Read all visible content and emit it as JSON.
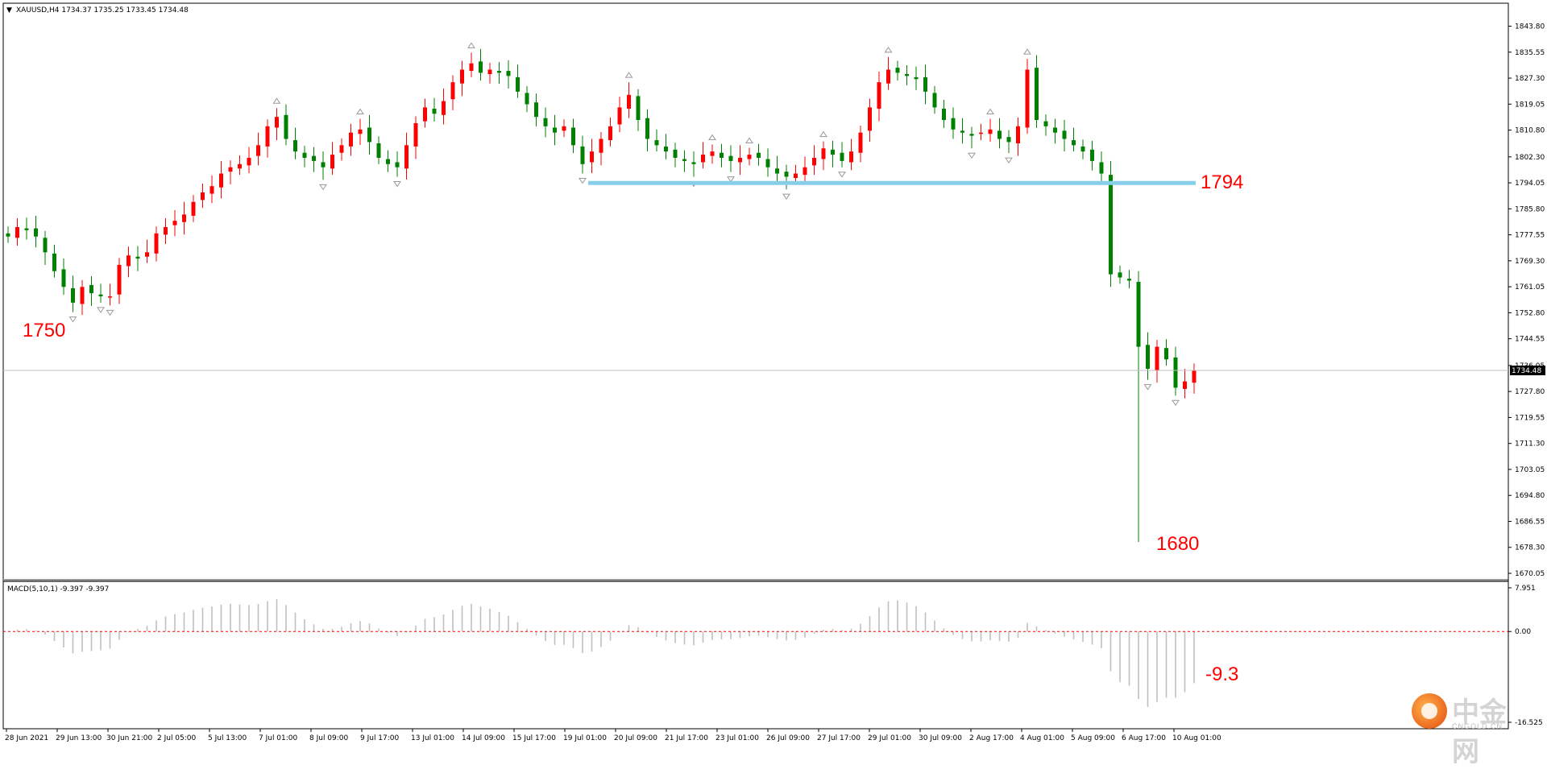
{
  "window": {
    "symbol_line": "XAUUSD,H4  1734.37 1735.25 1733.45 1734.48",
    "menu_icon": "triangle-down-icon"
  },
  "colors": {
    "bull": "#ff0000",
    "bear": "#008000",
    "support_line": "#87ceeb",
    "annotation": "#ff0000",
    "macd_bars": "#c0c0c0",
    "zero_line": "#ff0000",
    "grid": "none"
  },
  "annotations": {
    "low_left": "1750",
    "support": "1794",
    "low_right": "1680",
    "macd_value": "-9.3"
  },
  "watermark": {
    "logo_text": "中金网",
    "logo_url": "CNGOLD.CN"
  },
  "chart_data": [
    {
      "type": "candlestick",
      "title": "XAUUSD,H4",
      "ohlc_readout": {
        "open": 1734.37,
        "high": 1735.25,
        "low": 1733.45,
        "close": 1734.48
      },
      "last_price_label": "1734.48",
      "last_price": 1734.48,
      "ylim": [
        1670.05,
        1847
      ],
      "y_ticks": [
        "1843.80",
        "1835.55",
        "1827.30",
        "1819.05",
        "1810.80",
        "1802.30",
        "1794.05",
        "1785.80",
        "1777.55",
        "1769.30",
        "1761.05",
        "1752.80",
        "1744.55",
        "1736.05",
        "1727.80",
        "1719.55",
        "1711.30",
        "1703.05",
        "1694.80",
        "1686.55",
        "1678.30",
        "1670.05"
      ],
      "x_ticks": [
        "28 Jun 2021",
        "29 Jun 13:00",
        "30 Jun 21:00",
        "2 Jul 05:00",
        "5 Jul 13:00",
        "7 Jul 01:00",
        "8 Jul 09:00",
        "9 Jul 17:00",
        "13 Jul 01:00",
        "14 Jul 09:00",
        "15 Jul 17:00",
        "19 Jul 01:00",
        "20 Jul 09:00",
        "21 Jul 17:00",
        "23 Jul 01:00",
        "26 Jul 09:00",
        "27 Jul 17:00",
        "29 Jul 01:00",
        "30 Jul 09:00",
        "2 Aug 17:00",
        "4 Aug 01:00",
        "5 Aug 09:00",
        "6 Aug 17:00",
        "10 Aug 01:00"
      ],
      "support_level": 1794,
      "close_path": [
        1777,
        1780,
        1779,
        1777,
        1772,
        1766,
        1761,
        1756,
        1761,
        1759,
        1758,
        1758,
        1768,
        1771,
        1770,
        1772,
        1778,
        1780,
        1782,
        1784,
        1788,
        1791,
        1793,
        1797,
        1799,
        1800,
        1802,
        1806,
        1812,
        1815,
        1808,
        1804,
        1802,
        1801,
        1799,
        1803,
        1806,
        1810,
        1811,
        1807,
        1802,
        1800,
        1799,
        1806,
        1813,
        1818,
        1816,
        1820,
        1826,
        1830,
        1832,
        1829,
        1830,
        1829,
        1828,
        1823,
        1819,
        1815,
        1812,
        1810,
        1812,
        1806,
        1800,
        1804,
        1808,
        1812,
        1818,
        1822,
        1814,
        1808,
        1806,
        1804,
        1802,
        1801,
        1800,
        1803,
        1804,
        1802,
        1801,
        1802,
        1803,
        1802,
        1799,
        1797,
        1796,
        1797,
        1799,
        1802,
        1805,
        1803,
        1801,
        1804,
        1810,
        1818,
        1826,
        1830,
        1829,
        1828,
        1827,
        1823,
        1818,
        1814,
        1811,
        1810,
        1809,
        1810,
        1811,
        1808,
        1807,
        1812,
        1830,
        1814,
        1812,
        1810,
        1808,
        1806,
        1804,
        1801,
        1797,
        1765,
        1764,
        1763,
        1742,
        1735,
        1742,
        1738,
        1729,
        1731,
        1734.48
      ],
      "candles_drawn": "approximate from close_path"
    },
    {
      "type": "bar",
      "title": "MACD(5,10,1) -9.397 -9.397",
      "indicator": "MACD(5,10,1)",
      "main": -9.397,
      "signal": -9.397,
      "ylim": [
        -16.525,
        7.951
      ],
      "y_ticks": [
        "7.951",
        "0.00",
        "-16.525"
      ]
    }
  ]
}
